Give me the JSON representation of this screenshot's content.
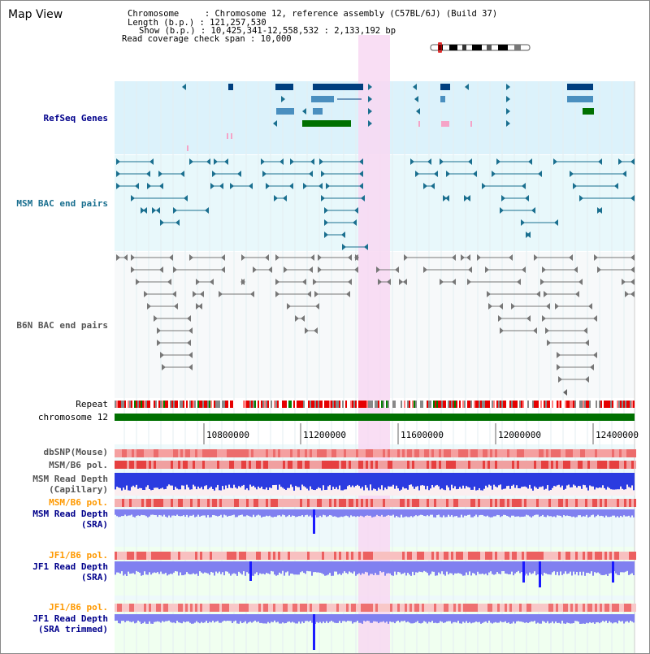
{
  "view": {
    "title": "Map View",
    "chromosome_line": "Chromosome     : Chromosome 12, reference assembly (C57BL/6J) (Build 37)",
    "length_line": "Length (b.p.) : 121,257,530",
    "show_line": "Show (b.p.) : 10,425,341-12,558,532 : 2,133,192 bp",
    "coverage_line": "Read coverage check span : 10,000"
  },
  "colors": {
    "refseq_bg": "#dcf2fb",
    "bac_bg": "#e8f8fb",
    "highlight": "#f8d8f2",
    "refseq_feature": "#003f7f",
    "msm_bac": "#1a6f8f",
    "b6n_bac": "#777777",
    "chromosome_bar": "#007000",
    "dbsnp": "#f08080",
    "depth_capillary": "#2b3be0",
    "depth_sra": "#8080f0",
    "orange_label": "#ff9900",
    "navy_label": "#00008b"
  },
  "tracks": {
    "refseq": {
      "label": "RefSeq Genes"
    },
    "msm_bac": {
      "label": "MSM BAC end pairs"
    },
    "b6n_bac": {
      "label": "B6N BAC end pairs"
    },
    "repeat": {
      "label": "Repeat"
    },
    "chromosome": {
      "label": "chromosome 12"
    },
    "dbsnp": {
      "label": "dbSNP(Mouse)"
    },
    "msm_b6_pol_1": {
      "label": "MSM/B6 pol."
    },
    "msm_depth_cap": {
      "label": "MSM Read Depth\n(Capillary)"
    },
    "msm_b6_pol_2": {
      "label": "MSM/B6 pol."
    },
    "msm_depth_sra": {
      "label": "MSM Read Depth\n(SRA)"
    },
    "jf1_b6_pol_1": {
      "label": "JF1/B6 pol."
    },
    "jf1_depth_sra": {
      "label": "JF1 Read Depth\n(SRA)"
    },
    "jf1_b6_pol_2": {
      "label": "JF1/B6 pol."
    },
    "jf1_depth_trim": {
      "label": "JF1 Read Depth\n(SRA trimmed)"
    }
  },
  "axis": {
    "ticks": [
      "10800000",
      "11200000",
      "11600000",
      "12000000",
      "12400000"
    ]
  }
}
